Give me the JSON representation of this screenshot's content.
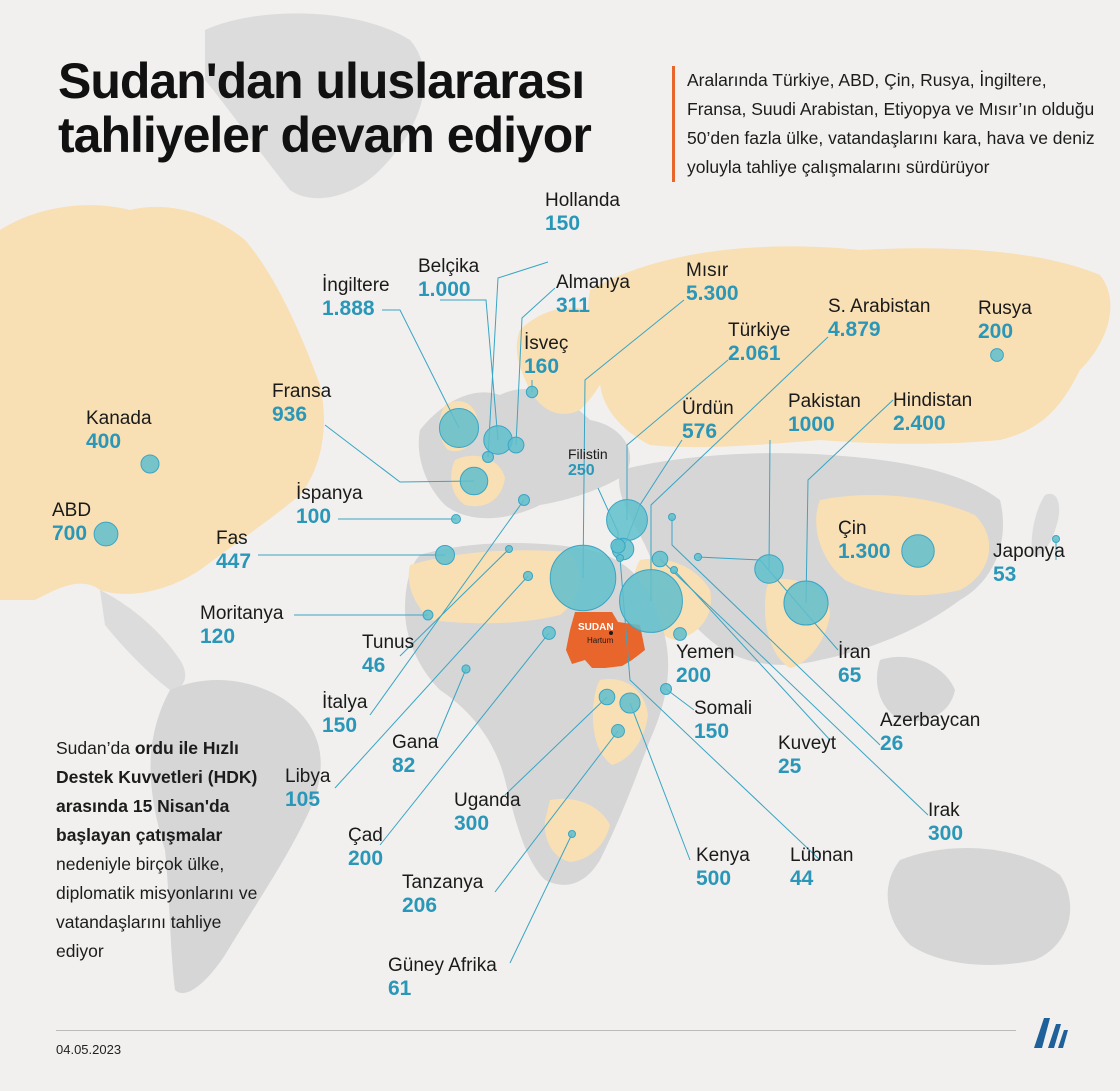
{
  "title": "Sudan'dan uluslararası tahliyeler devam ediyor",
  "intro": "Aralarında Türkiye, ABD, Çin, Rusya, İngiltere, Fransa, Suudi Arabistan, Etiyopya ve Mısır’ın olduğu 50’den fazla ülke, vatandaşlarını kara, hava ve deniz yoluyla tahliye çalışmalarını sürdürüyor",
  "side_note": {
    "part1": "Sudan’da ",
    "bold1": "ordu ile Hızlı Destek Kuvvetleri (HDK) arasında 15 Nisan'da başlayan çatışmalar",
    "part2": " nedeniyle birçok ülke, diplomatik misyonlarını ve vatandaşlarını tahliye ediyor"
  },
  "sudan": {
    "label": "SUDAN",
    "capital": "Hartum"
  },
  "date": "04.05.2023",
  "colors": {
    "bubble": "#5fbfcc",
    "line": "#3aa5c4",
    "value": "#2a97b8",
    "sudan": "#e8652c",
    "land_highlight": "#f8dfb4",
    "land_other": "#d6d6d6",
    "accent_bar": "#e8652c",
    "logo": "#1f5f9a"
  },
  "countries": [
    {
      "name": "Hollanda",
      "value": "150",
      "n": 150
    },
    {
      "name": "Belçika",
      "value": "1.000",
      "n": 1000
    },
    {
      "name": "Almanya",
      "value": "311",
      "n": 311
    },
    {
      "name": "İngiltere",
      "value": "1.888",
      "n": 1888
    },
    {
      "name": "Mısır",
      "value": "5.300",
      "n": 5300
    },
    {
      "name": "İsveç",
      "value": "160",
      "n": 160
    },
    {
      "name": "S. Arabistan",
      "value": "4.879",
      "n": 4879
    },
    {
      "name": "Rusya",
      "value": "200",
      "n": 200
    },
    {
      "name": "Türkiye",
      "value": "2.061",
      "n": 2061
    },
    {
      "name": "Fransa",
      "value": "936",
      "n": 936
    },
    {
      "name": "Kanada",
      "value": "400",
      "n": 400
    },
    {
      "name": "Ürdün",
      "value": "576",
      "n": 576
    },
    {
      "name": "Pakistan",
      "value": "1000",
      "n": 1000
    },
    {
      "name": "Hindistan",
      "value": "2.400",
      "n": 2400
    },
    {
      "name": "Filistin",
      "value": "250",
      "n": 250
    },
    {
      "name": "İspanya",
      "value": "100",
      "n": 100
    },
    {
      "name": "ABD",
      "value": "700",
      "n": 700
    },
    {
      "name": "Fas",
      "value": "447",
      "n": 447
    },
    {
      "name": "Çin",
      "value": "1.300",
      "n": 1300
    },
    {
      "name": "Japonya",
      "value": "53",
      "n": 53
    },
    {
      "name": "Moritanya",
      "value": "120",
      "n": 120
    },
    {
      "name": "Tunus",
      "value": "46",
      "n": 46
    },
    {
      "name": "Yemen",
      "value": "200",
      "n": 200
    },
    {
      "name": "İran",
      "value": "65",
      "n": 65
    },
    {
      "name": "İtalya",
      "value": "150",
      "n": 150
    },
    {
      "name": "Somali",
      "value": "150",
      "n": 150
    },
    {
      "name": "Azerbaycan",
      "value": "26",
      "n": 26
    },
    {
      "name": "Gana",
      "value": "82",
      "n": 82
    },
    {
      "name": "Kuveyt",
      "value": "25",
      "n": 25
    },
    {
      "name": "Libya",
      "value": "105",
      "n": 105
    },
    {
      "name": "Uganda",
      "value": "300",
      "n": 300
    },
    {
      "name": "Irak",
      "value": "300",
      "n": 300
    },
    {
      "name": "Çad",
      "value": "200",
      "n": 200
    },
    {
      "name": "Kenya",
      "value": "500",
      "n": 500
    },
    {
      "name": "Lübnan",
      "value": "44",
      "n": 44
    },
    {
      "name": "Tanzanya",
      "value": "206",
      "n": 206
    },
    {
      "name": "Güney Afrika",
      "value": "61",
      "n": 61
    }
  ]
}
